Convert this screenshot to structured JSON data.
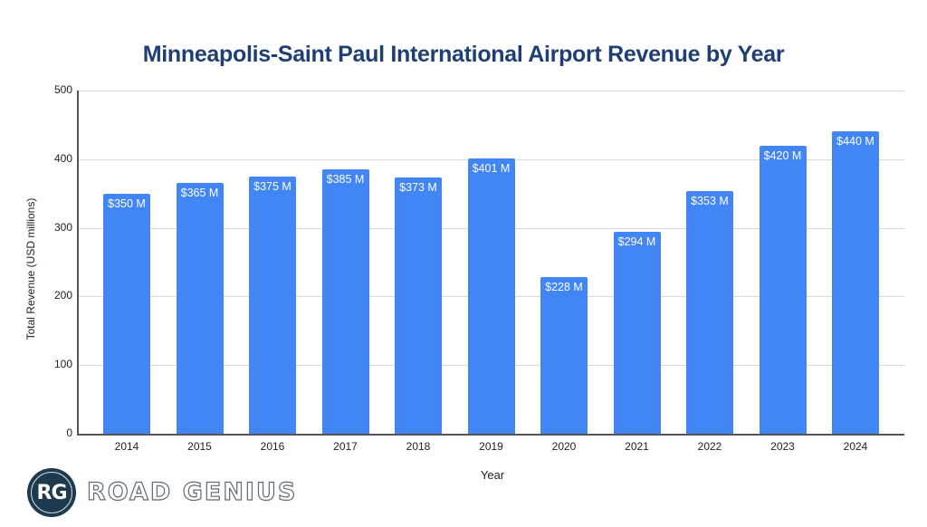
{
  "chart_data": {
    "type": "bar",
    "title": "Minneapolis-Saint Paul International Airport Revenue by Year",
    "xlabel": "Year",
    "ylabel": "Total Revenue (USD millions)",
    "categories": [
      "2014",
      "2015",
      "2016",
      "2017",
      "2018",
      "2019",
      "2020",
      "2021",
      "2022",
      "2023",
      "2024"
    ],
    "values": [
      350,
      365,
      375,
      385,
      373,
      401,
      228,
      294,
      353,
      420,
      440
    ],
    "data_labels": [
      "$350 M",
      "$365 M",
      "$375 M",
      "$385 M",
      "$373 M",
      "$401 M",
      "$228 M",
      "$294 M",
      "$353 M",
      "$420 M",
      "$440 M"
    ],
    "ylim": [
      0,
      500
    ],
    "yticks": [
      "0",
      "100",
      "200",
      "300",
      "400",
      "500"
    ],
    "grid": true,
    "legend": "none",
    "bar_color": "#4285f4"
  },
  "branding": {
    "logo_initials": "RG",
    "name": "ROAD GENIUS"
  }
}
